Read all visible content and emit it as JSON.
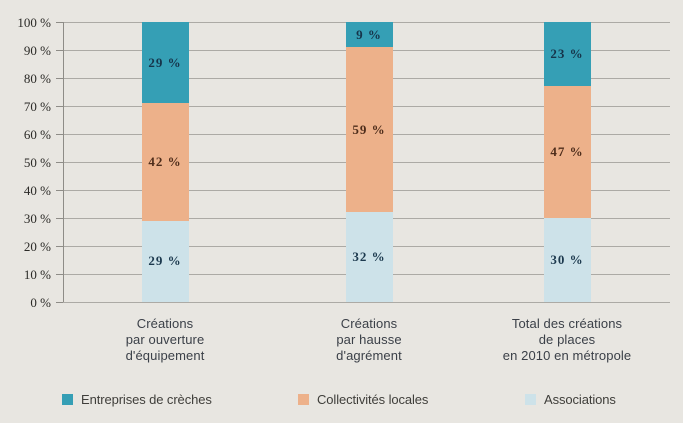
{
  "chart_data": {
    "type": "bar",
    "stacked": true,
    "title": "",
    "xlabel": "",
    "ylabel": "",
    "categories": [
      "Créations\npar ouverture\nd'équipement",
      "Créations\npar hausse\nd'agrément",
      "Total des créations\nde places\nen 2010 en métropole"
    ],
    "series": [
      {
        "name": "Associations",
        "color": "#CDE2E9",
        "label_color": "#1C394E",
        "values": [
          29,
          32,
          30
        ]
      },
      {
        "name": "Collectivités locales",
        "color": "#EDB18A",
        "label_color": "#4E2D1B",
        "values": [
          42,
          59,
          47
        ]
      },
      {
        "name": "Entreprises de crèches",
        "color": "#359FB5",
        "label_color": "#16344A",
        "values": [
          29,
          9,
          23
        ]
      }
    ],
    "value_suffix": " %",
    "ylim": [
      0,
      100
    ],
    "yticks": [
      0,
      10,
      20,
      30,
      40,
      50,
      60,
      70,
      80,
      90,
      100
    ],
    "ytick_suffix": " %",
    "grid": true,
    "legend_position": "bottom",
    "legend": [
      "Entreprises de crèches",
      "Collectivités locales",
      "Associations"
    ]
  },
  "colors": {
    "background": "#E8E6E1",
    "gridline": "#ACAAA5",
    "axis": "#8E8C87"
  }
}
